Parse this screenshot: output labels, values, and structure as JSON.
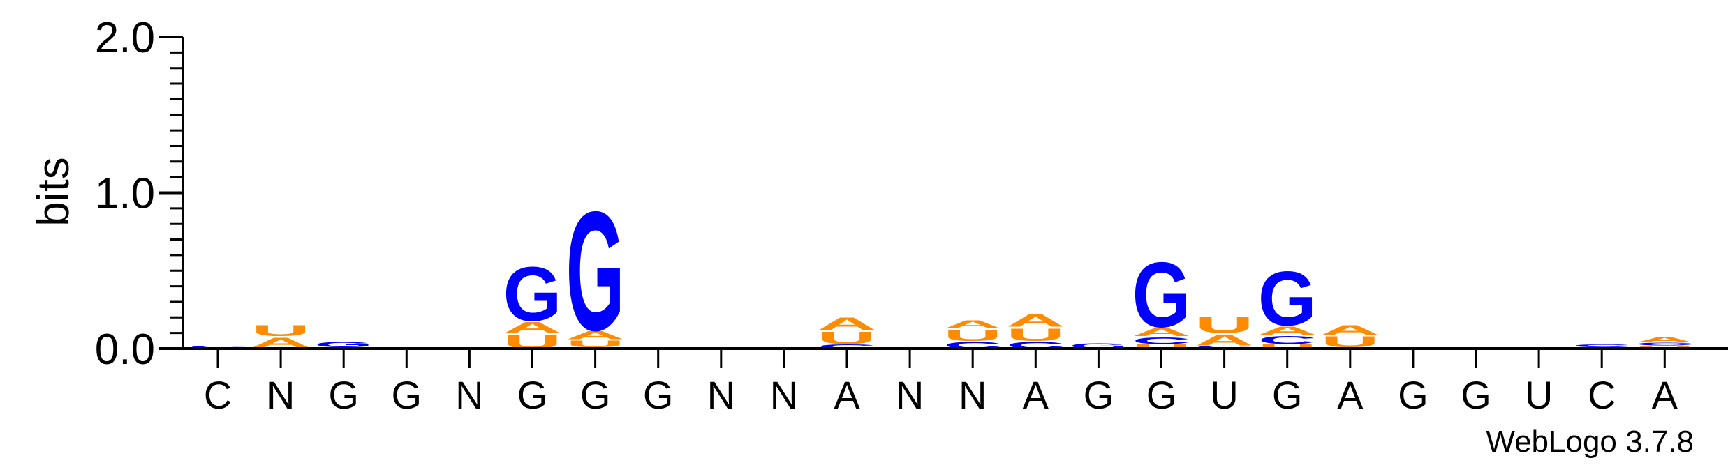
{
  "chart_data": {
    "type": "sequence-logo",
    "ylabel": "bits",
    "ylim": [
      0,
      2
    ],
    "yticks": [
      "0.0",
      "1.0",
      "2.0"
    ],
    "ytick_values": [
      0,
      1,
      2
    ],
    "consensus": [
      "C",
      "N",
      "G",
      "G",
      "N",
      "G",
      "G",
      "G",
      "N",
      "N",
      "A",
      "N",
      "N",
      "A",
      "G",
      "G",
      "U",
      "G",
      "A",
      "G",
      "G",
      "U",
      "C",
      "A"
    ],
    "colors": {
      "G": "#0000ff",
      "C": "#0000ff",
      "A": "#ff8c00",
      "U": "#ff8c00"
    },
    "positions": [
      {
        "stack": [
          {
            "letter": "C",
            "bits": 0.02
          }
        ]
      },
      {
        "stack": [
          {
            "letter": "G",
            "bits": 0.01
          },
          {
            "letter": "A",
            "bits": 0.07
          },
          {
            "letter": "U",
            "bits": 0.08
          }
        ]
      },
      {
        "stack": [
          {
            "letter": "A",
            "bits": 0.01
          },
          {
            "letter": "G",
            "bits": 0.04
          }
        ]
      },
      {
        "stack": []
      },
      {
        "stack": []
      },
      {
        "stack": [
          {
            "letter": "U",
            "bits": 0.1
          },
          {
            "letter": "A",
            "bits": 0.08
          },
          {
            "letter": "G",
            "bits": 0.4
          }
        ]
      },
      {
        "stack": [
          {
            "letter": "C",
            "bits": 0.01
          },
          {
            "letter": "U",
            "bits": 0.05
          },
          {
            "letter": "A",
            "bits": 0.06
          },
          {
            "letter": "G",
            "bits": 0.88
          }
        ]
      },
      {
        "stack": [
          {
            "letter": "A",
            "bits": 0.01
          }
        ]
      },
      {
        "stack": [
          {
            "letter": "A",
            "bits": 0.01
          }
        ]
      },
      {
        "stack": []
      },
      {
        "stack": [
          {
            "letter": "C",
            "bits": 0.03
          },
          {
            "letter": "U",
            "bits": 0.09
          },
          {
            "letter": "A",
            "bits": 0.09
          }
        ]
      },
      {
        "stack": []
      },
      {
        "stack": [
          {
            "letter": "C",
            "bits": 0.05
          },
          {
            "letter": "U",
            "bits": 0.08
          },
          {
            "letter": "A",
            "bits": 0.06
          }
        ]
      },
      {
        "stack": [
          {
            "letter": "C",
            "bits": 0.05
          },
          {
            "letter": "U",
            "bits": 0.09
          },
          {
            "letter": "A",
            "bits": 0.09
          }
        ]
      },
      {
        "stack": [
          {
            "letter": "G",
            "bits": 0.04
          }
        ]
      },
      {
        "stack": [
          {
            "letter": "U",
            "bits": 0.03
          },
          {
            "letter": "C",
            "bits": 0.05
          },
          {
            "letter": "A",
            "bits": 0.06
          },
          {
            "letter": "G",
            "bits": 0.48
          }
        ]
      },
      {
        "stack": [
          {
            "letter": "C",
            "bits": 0.02
          },
          {
            "letter": "A",
            "bits": 0.08
          },
          {
            "letter": "U",
            "bits": 0.12
          }
        ]
      },
      {
        "stack": [
          {
            "letter": "U",
            "bits": 0.03
          },
          {
            "letter": "C",
            "bits": 0.06
          },
          {
            "letter": "A",
            "bits": 0.06
          },
          {
            "letter": "G",
            "bits": 0.4
          }
        ]
      },
      {
        "stack": [
          {
            "letter": "C",
            "bits": 0.01
          },
          {
            "letter": "U",
            "bits": 0.08
          },
          {
            "letter": "A",
            "bits": 0.07
          }
        ]
      },
      {
        "stack": []
      },
      {
        "stack": []
      },
      {
        "stack": []
      },
      {
        "stack": [
          {
            "letter": "A",
            "bits": 0.01
          },
          {
            "letter": "C",
            "bits": 0.02
          }
        ]
      },
      {
        "stack": [
          {
            "letter": "U",
            "bits": 0.02
          },
          {
            "letter": "C",
            "bits": 0.02
          },
          {
            "letter": "A",
            "bits": 0.04
          }
        ]
      }
    ]
  },
  "footer": {
    "credit": "WebLogo 3.7.8"
  }
}
